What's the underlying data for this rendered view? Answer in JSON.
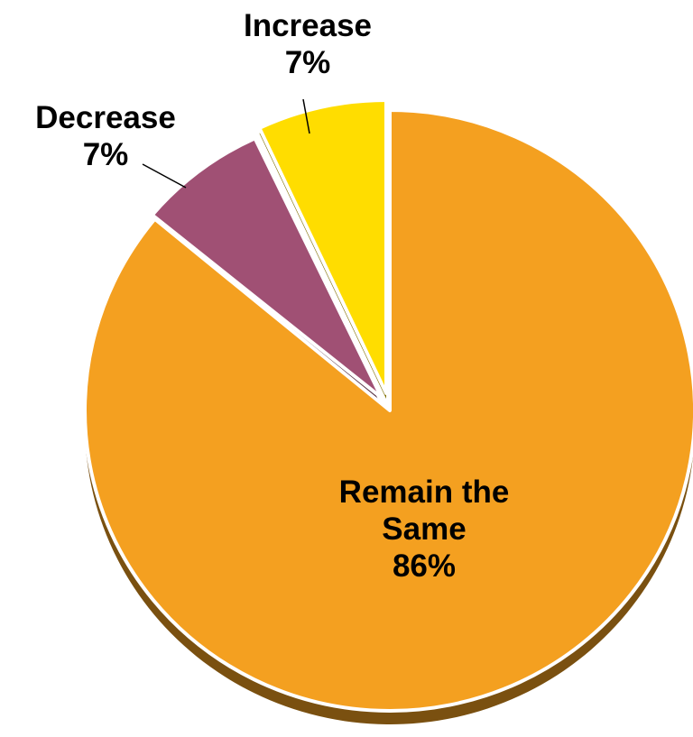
{
  "chart_data": {
    "type": "pie",
    "title": "",
    "slices": [
      {
        "label": "Remain the Same",
        "value": 86,
        "value_label": "86%",
        "color": "#F4A020",
        "label_lines": [
          "Remain the",
          "Same"
        ]
      },
      {
        "label": "Decrease",
        "value": 7,
        "value_label": "7%",
        "color": "#A05074",
        "label_lines": [
          "Decrease"
        ]
      },
      {
        "label": "Increase",
        "value": 7,
        "value_label": "7%",
        "color": "#FFDD00",
        "label_lines": [
          "Increase"
        ]
      }
    ],
    "style": "3d-exploded",
    "legend": "none",
    "labels": "data-labels-with-leader-lines"
  }
}
